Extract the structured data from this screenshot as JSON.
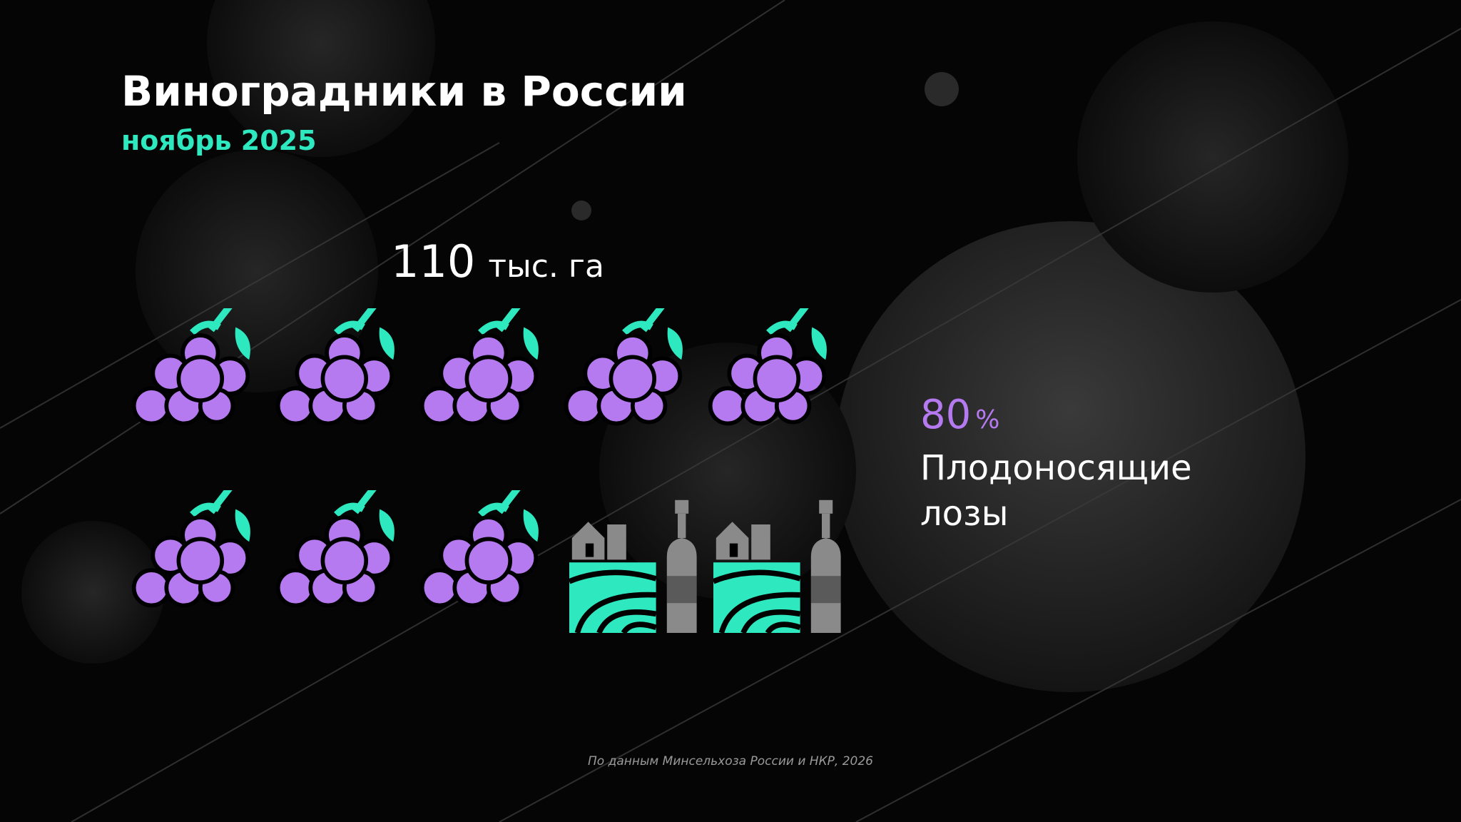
{
  "chart_data": {
    "type": "pictogram",
    "title": "Виноградники в России",
    "subtitle": "ноябрь 2025",
    "total": {
      "value": 110,
      "unit": "тыс. га"
    },
    "share": {
      "value": 80,
      "unit": "%"
    },
    "caption": [
      "Плодоносящие",
      "лозы"
    ],
    "icon_color": "#b57af0",
    "accent_color": "#2ee8c0",
    "source": "По данным Минсельхоза России и НКР, 2026"
  }
}
